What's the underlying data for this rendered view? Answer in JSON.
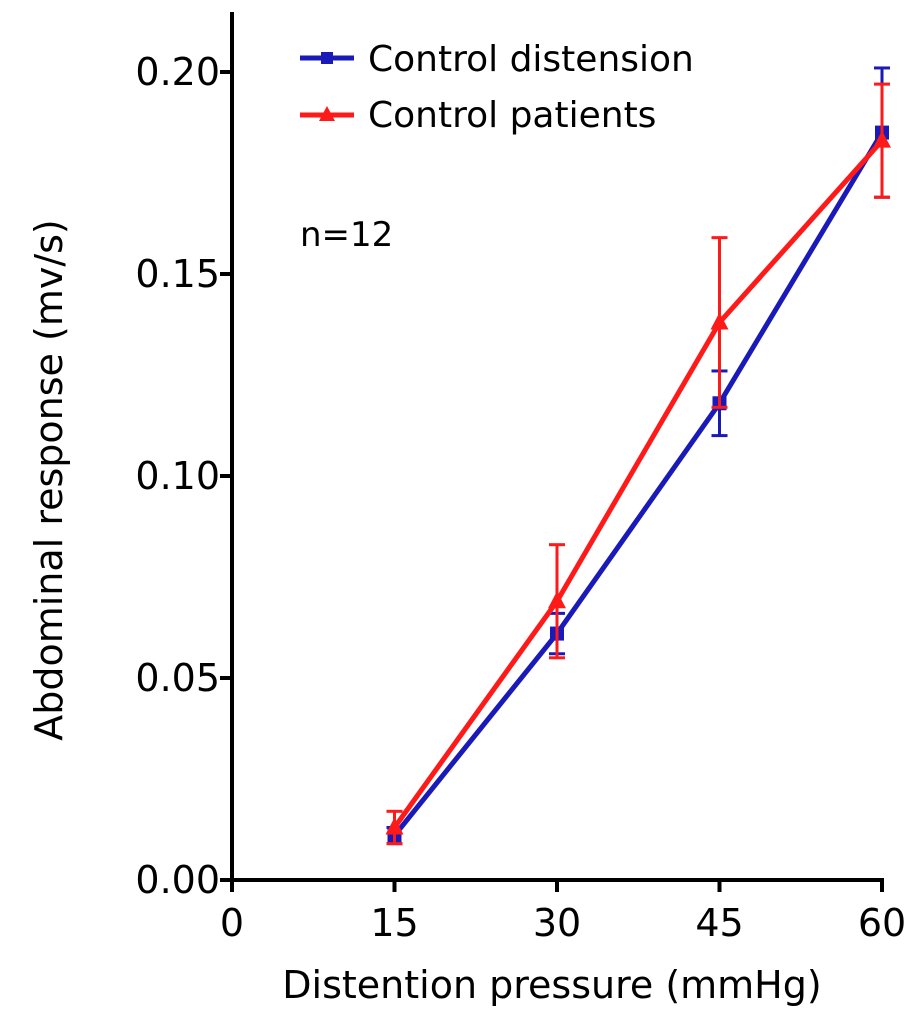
{
  "chart_data": {
    "type": "line",
    "title": "",
    "xlabel": "Distention pressure (mmHg)",
    "ylabel": "Abdominal response (mv/s)",
    "xlim": [
      0,
      60
    ],
    "ylim": [
      0,
      0.2
    ],
    "x_ticks": [
      "0",
      "15",
      "30",
      "45",
      "60"
    ],
    "x_tick_values": [
      0,
      15,
      30,
      45,
      60
    ],
    "y_ticks": [
      "0.00",
      "0.05",
      "0.10",
      "0.15",
      "0.20"
    ],
    "y_tick_values": [
      0,
      0.05,
      0.1,
      0.15,
      0.2
    ],
    "grid": false,
    "legend_placement": "top-left",
    "annotation": "n=12",
    "series": [
      {
        "name": "Control distension",
        "color": "#1a1ab8",
        "marker": "square",
        "x": [
          15,
          30,
          45,
          60
        ],
        "values": [
          0.011,
          0.061,
          0.118,
          0.185
        ],
        "error": [
          0.002,
          0.005,
          0.008,
          0.016
        ]
      },
      {
        "name": "Control patients",
        "color": "#ff1a1a",
        "marker": "triangle",
        "x": [
          15,
          30,
          45,
          60
        ],
        "values": [
          0.013,
          0.069,
          0.138,
          0.183
        ],
        "error": [
          0.004,
          0.014,
          0.021,
          0.014
        ]
      }
    ]
  }
}
